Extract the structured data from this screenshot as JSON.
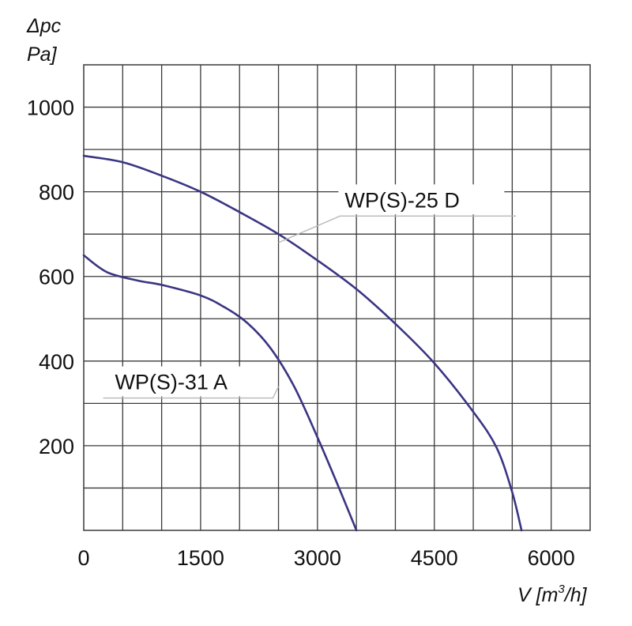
{
  "chart_data": {
    "type": "line",
    "ylabel_line1": "Δpc",
    "ylabel_line2": "Pa]",
    "xlabel_main": "V [m",
    "xlabel_sup": "3",
    "xlabel_end": "/h]",
    "xlim": [
      0,
      6500
    ],
    "ylim": [
      0,
      1100
    ],
    "x_ticks": [
      0,
      1500,
      3000,
      4500,
      6000
    ],
    "x_tick_labels": [
      "0",
      "1500",
      "3000",
      "4500",
      "6000"
    ],
    "y_ticks": [
      200,
      400,
      600,
      800,
      1000
    ],
    "y_tick_labels": [
      "200",
      "400",
      "600",
      "800",
      "1000"
    ],
    "grid": true,
    "x_grid_step": 500,
    "y_grid_step": 100,
    "line_color": "#3a3582",
    "series": [
      {
        "name": "WP(S)-25 D",
        "x": [
          0,
          500,
          1000,
          1500,
          2000,
          2500,
          3000,
          3500,
          4000,
          4500,
          5000,
          5300,
          5500,
          5620
        ],
        "y": [
          885,
          870,
          838,
          800,
          752,
          700,
          638,
          570,
          488,
          395,
          280,
          195,
          90,
          0
        ]
      },
      {
        "name": "WP(S)-31 A",
        "x": [
          0,
          300,
          700,
          1000,
          1500,
          1800,
          2100,
          2400,
          2700,
          3000,
          3300,
          3500
        ],
        "y": [
          650,
          610,
          590,
          580,
          555,
          528,
          490,
          430,
          340,
          220,
          90,
          0
        ]
      }
    ],
    "labels": [
      {
        "series": 0,
        "text": "WP(S)-25 D",
        "anchor_x": 2500,
        "anchor_y": 680,
        "text_x": 3350,
        "text_y": 780,
        "line_end_x": 5550
      },
      {
        "series": 1,
        "text": "WP(S)-31 A",
        "anchor_x": 2500,
        "anchor_y": 340,
        "text_x": 400,
        "text_y": 350,
        "line_end_x": 250
      }
    ]
  }
}
